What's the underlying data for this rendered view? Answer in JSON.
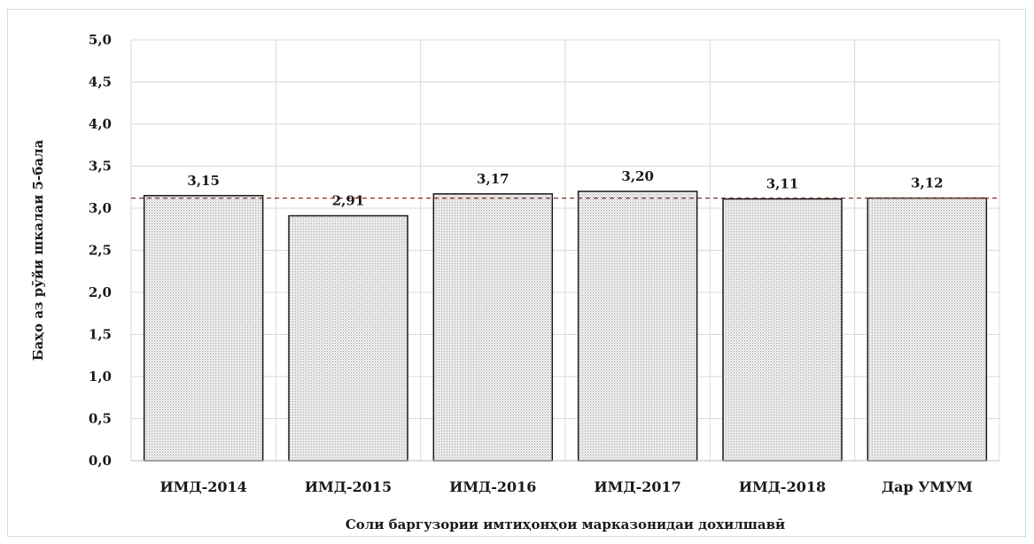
{
  "chart_data": {
    "type": "bar",
    "categories": [
      "ИМД-2014",
      "ИМД-2015",
      "ИМД-2016",
      "ИМД-2017",
      "ИМД-2018",
      "Дар УМУМ"
    ],
    "values": [
      3.15,
      2.91,
      3.17,
      3.2,
      3.11,
      3.12
    ],
    "data_labels": [
      "3,15",
      "2,91",
      "3,17",
      "3,20",
      "3,11",
      "3,12"
    ],
    "xlabel": "Соли баргузории имтиҳонҳои марказонидаи дохилшавӣ",
    "ylabel": "Баҳо аз рӯйи шкалаи 5-бала",
    "ylim": [
      0,
      5
    ],
    "yticks": [
      0,
      0.5,
      1,
      1.5,
      2,
      2.5,
      3,
      3.5,
      4,
      4.5,
      5
    ],
    "ytick_labels": [
      "0,0",
      "0,5",
      "1,0",
      "1,5",
      "2,0",
      "2,5",
      "3,0",
      "3,5",
      "4,0",
      "4,5",
      "5,0"
    ],
    "reference_line": 3.12,
    "grid": true,
    "colors": {
      "bar_fill": "#d4d4d4",
      "bar_outline": "#1a1a1a",
      "grid": "#d9d9d9",
      "reference_line": "#8b2a2a"
    }
  }
}
